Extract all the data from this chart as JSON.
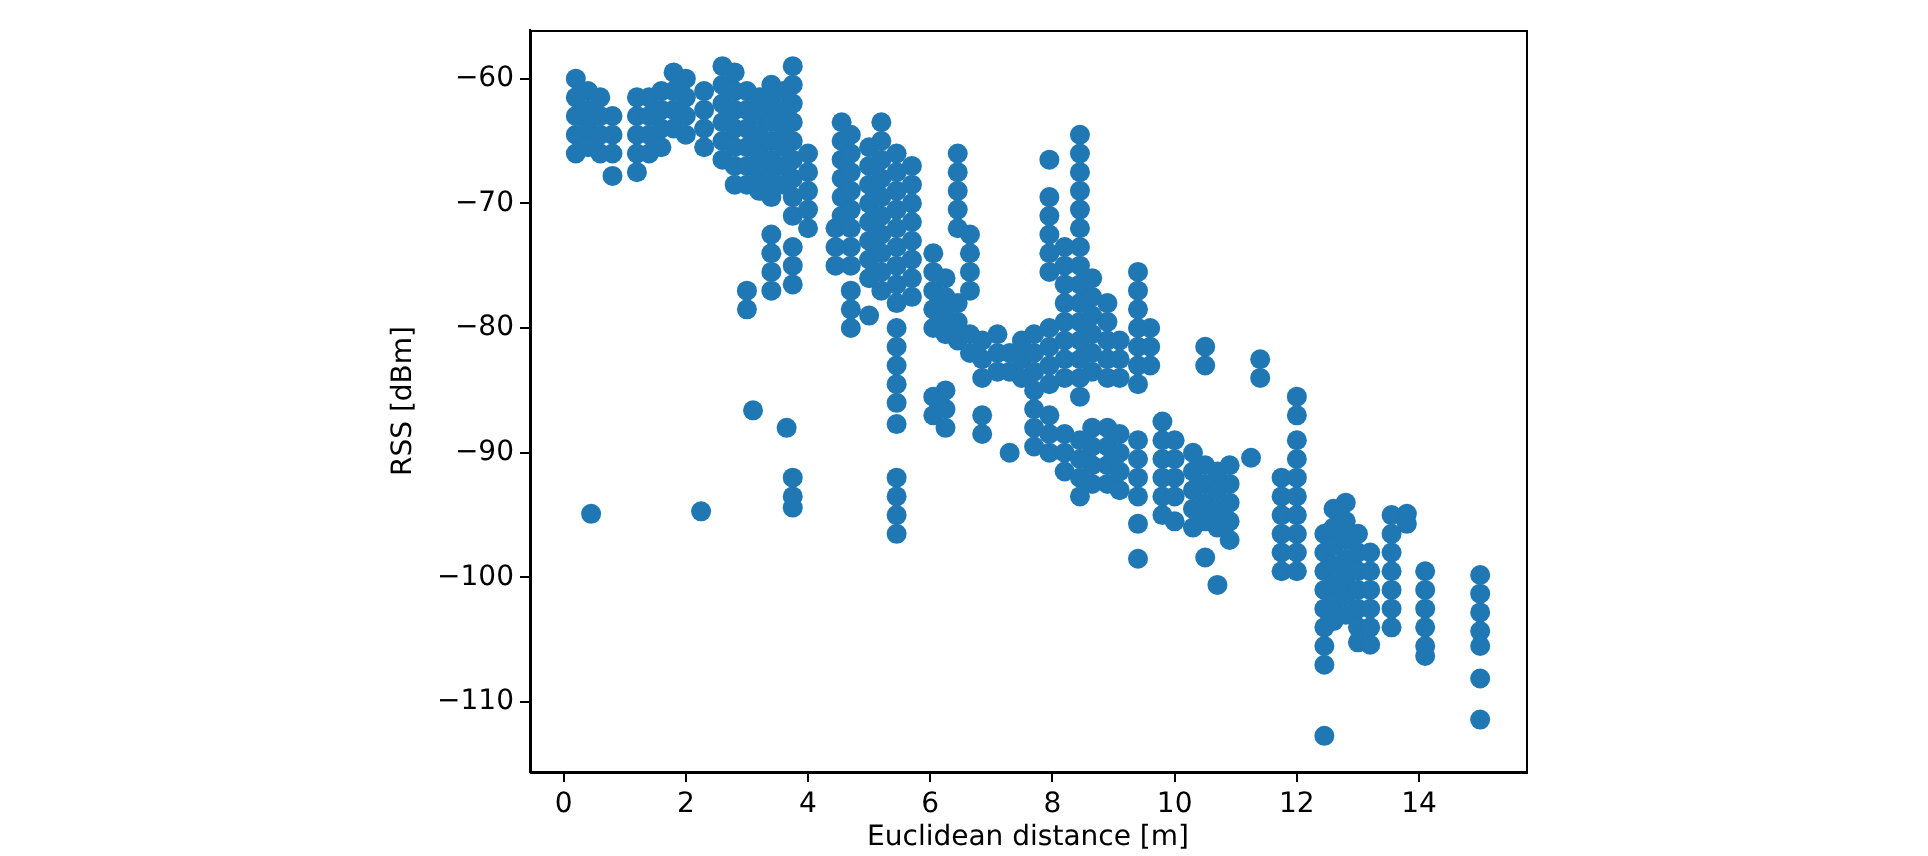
{
  "chart_data": {
    "type": "scatter",
    "xlabel": "Euclidean distance [m]",
    "ylabel": "RSS [dBm]",
    "xlim": [
      -0.55,
      15.75
    ],
    "ylim": [
      -115.6,
      -56.1
    ],
    "xticks": [
      0,
      2,
      4,
      6,
      8,
      10,
      12,
      14
    ],
    "yticks": [
      {
        "value": -110,
        "label": "−110"
      },
      {
        "value": -100,
        "label": "−100"
      },
      {
        "value": -90,
        "label": "−90"
      },
      {
        "value": -80,
        "label": "−80"
      },
      {
        "value": -70,
        "label": "−70"
      },
      {
        "value": -60,
        "label": "−60"
      }
    ],
    "grid": false,
    "legend": false,
    "marker": "circle",
    "series": [
      {
        "color": "#1f77b4",
        "x": [
          0.2,
          0.2,
          0.2,
          0.2,
          0.2,
          0.4,
          0.4,
          0.4,
          0.4,
          0.6,
          0.6,
          0.6,
          0.6,
          0.8,
          0.8,
          0.8,
          0.8,
          0.45,
          1.2,
          1.2,
          1.2,
          1.2,
          1.2,
          1.4,
          1.4,
          1.4,
          1.4,
          1.6,
          1.6,
          1.6,
          1.6,
          1.8,
          1.8,
          1.8,
          1.8,
          2,
          2,
          2,
          2,
          2.25,
          2.3,
          2.3,
          2.3,
          2.3,
          2.6,
          2.6,
          2.6,
          2.6,
          2.6,
          2.6,
          2.8,
          2.8,
          2.8,
          2.8,
          2.8,
          2.8,
          2.8,
          3,
          3,
          3,
          3,
          3,
          3,
          3,
          3,
          3.1,
          3.2,
          3.2,
          3.2,
          3.2,
          3.2,
          3.2,
          3.4,
          3.4,
          3.4,
          3.4,
          3.4,
          3.4,
          3.4,
          3.4,
          3.4,
          3.4,
          3.4,
          3.6,
          3.6,
          3.6,
          3.6,
          3.6,
          3.6,
          3.65,
          3.75,
          3.75,
          3.75,
          3.75,
          3.75,
          3.75,
          3.75,
          3.75,
          3.75,
          3.75,
          3.75,
          3.75,
          3.75,
          3.75,
          3.75,
          4,
          4,
          4,
          4,
          4,
          4.45,
          4.45,
          4.45,
          4.55,
          4.55,
          4.55,
          4.55,
          4.55,
          4.55,
          4.7,
          4.7,
          4.7,
          4.7,
          4.7,
          4.7,
          4.7,
          4.7,
          4.7,
          4.7,
          4.7,
          5,
          5,
          5,
          5,
          5,
          5,
          5,
          5,
          5,
          5.2,
          5.2,
          5.2,
          5.2,
          5.2,
          5.2,
          5.2,
          5.2,
          5.2,
          5.2,
          5.45,
          5.45,
          5.45,
          5.45,
          5.45,
          5.45,
          5.45,
          5.45,
          5.45,
          5.45,
          5.45,
          5.45,
          5.45,
          5.45,
          5.45,
          5.45,
          5.45,
          5.45,
          5.45,
          5.7,
          5.7,
          5.7,
          5.7,
          5.7,
          5.7,
          5.7,
          5.7,
          6.05,
          6.05,
          6.05,
          6.05,
          6.05,
          6.05,
          6.05,
          6.25,
          6.25,
          6.25,
          6.25,
          6.25,
          6.25,
          6.25,
          6.45,
          6.45,
          6.45,
          6.45,
          6.45,
          6.45,
          6.45,
          6.45,
          6.65,
          6.65,
          6.65,
          6.65,
          6.65,
          6.65,
          6.85,
          6.85,
          6.85,
          6.85,
          6.85,
          7.1,
          7.1,
          7.1,
          7.3,
          7.3,
          7.3,
          7.5,
          7.5,
          7.5,
          7.7,
          7.7,
          7.7,
          7.7,
          7.7,
          7.7,
          7.7,
          7.95,
          7.95,
          7.95,
          7.95,
          7.95,
          7.95,
          7.95,
          7.95,
          7.95,
          7.95,
          7.95,
          7.95,
          7.95,
          8.2,
          8.2,
          8.2,
          8.2,
          8.2,
          8.2,
          8.2,
          8.2,
          8.2,
          8.2,
          8.2,
          8.45,
          8.45,
          8.45,
          8.45,
          8.45,
          8.45,
          8.45,
          8.45,
          8.45,
          8.45,
          8.45,
          8.45,
          8.45,
          8.45,
          8.45,
          8.45,
          8.45,
          8.45,
          8.45,
          8.65,
          8.65,
          8.65,
          8.65,
          8.65,
          8.65,
          8.65,
          8.65,
          8.65,
          8.65,
          8.9,
          8.9,
          8.9,
          8.9,
          8.9,
          8.9,
          8.9,
          8.9,
          8.9,
          9.1,
          9.1,
          9.1,
          9.1,
          9.1,
          9.1,
          9.1,
          9.4,
          9.4,
          9.4,
          9.4,
          9.4,
          9.4,
          9.4,
          9.4,
          9.4,
          9.4,
          9.4,
          9.4,
          9.4,
          9.6,
          9.6,
          9.6,
          9.8,
          9.8,
          9.8,
          9.8,
          9.8,
          9.8,
          10,
          10,
          10,
          10,
          10,
          10.3,
          10.3,
          10.3,
          10.3,
          10.3,
          10.5,
          10.5,
          10.5,
          10.5,
          10.5,
          10.5,
          10.5,
          10.7,
          10.7,
          10.7,
          10.7,
          10.7,
          10.9,
          10.9,
          10.9,
          10.9,
          10.9,
          11.25,
          11.4,
          11.4,
          11.75,
          11.75,
          11.75,
          11.75,
          11.75,
          11.75,
          12,
          12,
          12,
          12,
          12,
          12,
          12,
          12,
          12,
          12,
          12.45,
          12.45,
          12.45,
          12.45,
          12.45,
          12.45,
          12.45,
          12.45,
          12.45,
          12.6,
          12.6,
          12.6,
          12.6,
          12.6,
          12.6,
          12.6,
          12.8,
          12.8,
          12.8,
          12.8,
          12.8,
          12.8,
          12.8,
          13,
          13,
          13,
          13,
          13,
          13,
          13,
          13.2,
          13.2,
          13.2,
          13.2,
          13.2,
          13.2,
          13.55,
          13.55,
          13.55,
          13.55,
          13.55,
          13.55,
          13.55,
          13.8,
          13.8,
          14.1,
          14.1,
          14.1,
          14.1,
          14.1,
          14.1,
          15,
          15,
          15,
          15,
          15,
          15,
          15
        ],
        "values": [
          -60,
          -61.5,
          -63,
          -64.5,
          -66,
          -61,
          -62.5,
          -64,
          -65.5,
          -61.5,
          -63,
          -64.5,
          -66,
          -63,
          -64.5,
          -66,
          -67.8,
          -94.9,
          -61.5,
          -63,
          -64.5,
          -66,
          -67.5,
          -61.5,
          -63,
          -64.5,
          -66,
          -61,
          -62.5,
          -64,
          -65.5,
          -59.5,
          -61,
          -62.5,
          -64,
          -60,
          -61.5,
          -63,
          -64.5,
          -94.7,
          -61,
          -62.5,
          -64,
          -65.5,
          -59,
          -60.5,
          -62,
          -63.5,
          -65,
          -66.5,
          -59.5,
          -61,
          -62.5,
          -64,
          -65.5,
          -67,
          -68.5,
          -61,
          -62.5,
          -64,
          -65.5,
          -67,
          -68.5,
          -77,
          -78.5,
          -86.6,
          -61.5,
          -63,
          -64.5,
          -66,
          -67.5,
          -69,
          -60.5,
          -62,
          -63.5,
          -65,
          -66.5,
          -68,
          -69.5,
          -72.5,
          -74,
          -75.5,
          -77,
          -61,
          -62.5,
          -64,
          -65.5,
          -67,
          -68.5,
          -88,
          -59,
          -60.5,
          -62,
          -63.5,
          -65,
          -66.5,
          -68,
          -69.5,
          -71,
          -73.5,
          -75,
          -76.5,
          -92,
          -93.5,
          -94.4,
          -66,
          -67.5,
          -69,
          -70.5,
          -72,
          -72,
          -73.5,
          -75,
          -63.5,
          -65,
          -66.5,
          -68,
          -69.5,
          -71,
          -64.5,
          -66,
          -67.5,
          -69,
          -70.5,
          -72,
          -73.5,
          -75,
          -77,
          -78.5,
          -80,
          -65.5,
          -67,
          -68.5,
          -70,
          -71.5,
          -73,
          -74.5,
          -76,
          -79,
          -63.5,
          -65,
          -66.5,
          -68,
          -69.5,
          -71,
          -72.5,
          -74,
          -75.5,
          -77,
          -66,
          -67.5,
          -69,
          -70.5,
          -72,
          -73.5,
          -75,
          -76.5,
          -78,
          -80,
          -81.5,
          -83,
          -84.5,
          -86,
          -87.7,
          -92,
          -93.5,
          -95,
          -96.5,
          -67,
          -68.5,
          -70,
          -71.5,
          -73,
          -74.5,
          -76,
          -77.5,
          -74,
          -75.5,
          -77,
          -78.5,
          -80,
          -85.5,
          -87,
          -76,
          -77.5,
          -79,
          -80.5,
          -85,
          -86.5,
          -88,
          -66,
          -67.5,
          -69,
          -70.5,
          -72,
          -78,
          -79.5,
          -81,
          -72.5,
          -74,
          -75.5,
          -77,
          -80.5,
          -82,
          -81,
          -82.5,
          -84,
          -87,
          -88.5,
          -80.5,
          -82,
          -83.5,
          -82,
          -83.5,
          -90,
          -81,
          -82.5,
          -84,
          -80.5,
          -82,
          -83.5,
          -85,
          -86.5,
          -88,
          -89.5,
          -66.5,
          -69.5,
          -71,
          -72.5,
          -74,
          -75.5,
          -80,
          -81.5,
          -83,
          -84.5,
          -87,
          -88.5,
          -90,
          -73.5,
          -75,
          -76.5,
          -78,
          -79.5,
          -81,
          -82.5,
          -84,
          -88.5,
          -90,
          -91.5,
          -64.5,
          -66,
          -67.5,
          -69,
          -70.5,
          -72,
          -73.5,
          -75,
          -76.5,
          -78,
          -79.5,
          -81,
          -82.5,
          -84,
          -85.5,
          -89,
          -90.5,
          -92,
          -93.5,
          -76,
          -77.5,
          -79,
          -80.5,
          -82,
          -83.5,
          -88,
          -89.5,
          -91,
          -92.5,
          -78,
          -79.5,
          -81,
          -82.5,
          -84,
          -88,
          -89.5,
          -91,
          -92.5,
          -81,
          -82.5,
          -84,
          -88.5,
          -90,
          -91.5,
          -93,
          -75.5,
          -77,
          -78.5,
          -80,
          -81.5,
          -83,
          -84.5,
          -89,
          -90.5,
          -92,
          -93.5,
          -95.7,
          -98.5,
          -80,
          -81.5,
          -83,
          -87.5,
          -89,
          -90.5,
          -92,
          -93.5,
          -95,
          -89,
          -90.5,
          -92,
          -93.5,
          -95.5,
          -90,
          -91.5,
          -93,
          -94.5,
          -96,
          -81.5,
          -83,
          -91,
          -92.5,
          -94,
          -95.5,
          -98.4,
          -91.5,
          -93,
          -94.5,
          -96,
          -100.6,
          -91,
          -92.5,
          -94,
          -95.5,
          -97,
          -90.4,
          -82.5,
          -84,
          -92,
          -93.5,
          -95,
          -96.5,
          -98,
          -99.5,
          -85.5,
          -87,
          -89,
          -90.5,
          -92,
          -93.5,
          -95,
          -96.5,
          -98,
          -99.5,
          -96.5,
          -98,
          -99.5,
          -101,
          -102.5,
          -104,
          -105.5,
          -107,
          -112.7,
          -94.5,
          -96,
          -97.5,
          -99,
          -100.5,
          -102,
          -103.5,
          -94,
          -95.5,
          -97,
          -98.5,
          -100,
          -101.5,
          -103,
          -96.5,
          -98,
          -99.5,
          -101,
          -102.5,
          -104,
          -105.2,
          -98,
          -99.5,
          -101,
          -102.5,
          -104,
          -105.4,
          -95,
          -96.5,
          -98,
          -99.5,
          -101,
          -102.5,
          -104,
          -94.9,
          -95.7,
          -99.5,
          -101,
          -102.5,
          -104,
          -105.5,
          -106.3,
          -99.8,
          -101.3,
          -102.8,
          -104.3,
          -105.5,
          -108.1,
          -111.4
        ]
      }
    ]
  }
}
